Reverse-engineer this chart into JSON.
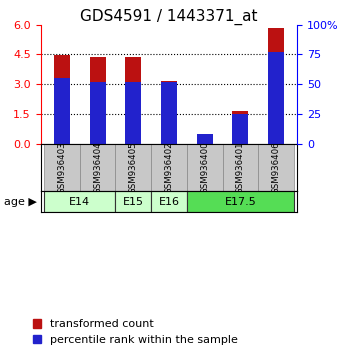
{
  "title": "GDS4591 / 1443371_at",
  "samples": [
    "GSM936403",
    "GSM936404",
    "GSM936405",
    "GSM936402",
    "GSM936400",
    "GSM936401",
    "GSM936406"
  ],
  "transformed_count": [
    4.47,
    4.39,
    4.36,
    3.18,
    0.12,
    1.62,
    5.85
  ],
  "percentile_rank": [
    55,
    52,
    52,
    52,
    8,
    25,
    77
  ],
  "age_groups": [
    {
      "label": "E14",
      "start": 0,
      "end": 1,
      "color": "#ccffcc"
    },
    {
      "label": "E15",
      "start": 2,
      "end": 2,
      "color": "#ccffcc"
    },
    {
      "label": "E16",
      "start": 3,
      "end": 3,
      "color": "#ccffcc"
    },
    {
      "label": "E17.5",
      "start": 4,
      "end": 6,
      "color": "#55dd55"
    }
  ],
  "ylim_left": [
    0,
    6
  ],
  "ylim_right": [
    0,
    100
  ],
  "yticks_left": [
    0,
    1.5,
    3,
    4.5,
    6
  ],
  "yticks_right": [
    0,
    25,
    50,
    75,
    100
  ],
  "bar_color_red": "#bb1111",
  "bar_color_blue": "#2222cc",
  "bar_width": 0.45,
  "bg_color_sample": "#c8c8c8",
  "title_fontsize": 11,
  "tick_fontsize": 8,
  "legend_fontsize": 8
}
